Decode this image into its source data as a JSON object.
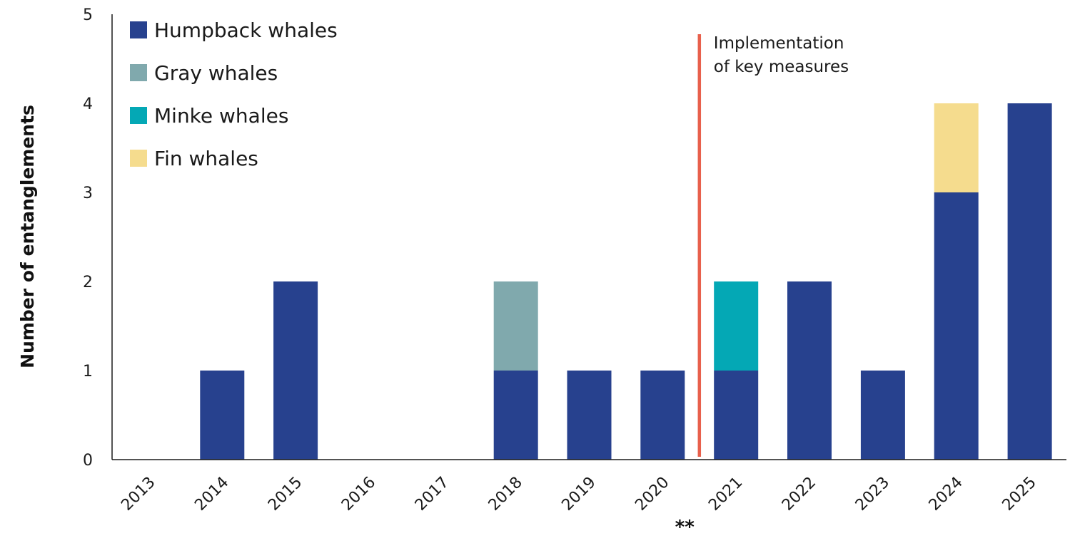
{
  "chart_data": {
    "type": "bar",
    "stacked": true,
    "categories": [
      "2013",
      "2014",
      "2015",
      "2016",
      "2017",
      "2018",
      "2019",
      "2020",
      "2021",
      "2022",
      "2023",
      "2024",
      "2025"
    ],
    "series": [
      {
        "name": "Humpback whales",
        "color": "#27418e",
        "values": [
          0,
          1,
          2,
          0,
          0,
          1,
          1,
          1,
          1,
          2,
          1,
          3,
          4
        ]
      },
      {
        "name": "Gray whales",
        "color": "#80a9ad",
        "values": [
          0,
          0,
          0,
          0,
          0,
          1,
          0,
          0,
          0,
          0,
          0,
          0,
          0
        ]
      },
      {
        "name": "Minke whales",
        "color": "#04a8b5",
        "values": [
          0,
          0,
          0,
          0,
          0,
          0,
          0,
          0,
          1,
          0,
          0,
          0,
          0
        ]
      },
      {
        "name": "Fin whales",
        "color": "#f5dc8e",
        "values": [
          0,
          0,
          0,
          0,
          0,
          0,
          0,
          0,
          0,
          0,
          0,
          1,
          0
        ]
      }
    ],
    "ylabel": "Number of entanglements",
    "xlabel": "",
    "ylim": [
      0,
      5
    ],
    "yticks": [
      0,
      1,
      2,
      3,
      4,
      5
    ],
    "grid": false,
    "legend_position": "top-left",
    "annotation": {
      "lines": [
        "Implementation",
        "of key measures"
      ],
      "between_categories": [
        "2020",
        "2021"
      ],
      "color": "#e8604c"
    },
    "category_marker": {
      "category": "2021",
      "text": "**"
    }
  }
}
